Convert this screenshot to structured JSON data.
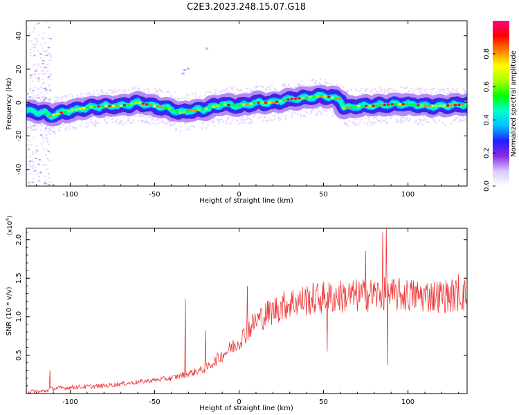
{
  "title": "C2E3.2023.248.15.07.G18",
  "chart_data": [
    {
      "type": "heatmap",
      "xlabel": "Height of straight line (km)",
      "ylabel": "Frequency (Hz)",
      "xlim": [
        -126,
        135
      ],
      "ylim": [
        -50,
        49
      ],
      "xticks": [
        -100,
        -50,
        0,
        50,
        100
      ],
      "yticks": [
        -40,
        -20,
        0,
        20,
        40
      ],
      "ridge_x": [
        -126,
        -115,
        -112,
        -105,
        -100,
        -90,
        -80,
        -70,
        -60,
        -50,
        -40,
        -35,
        -30,
        -20,
        -10,
        0,
        10,
        20,
        30,
        40,
        50,
        55,
        60,
        62,
        65,
        70,
        80,
        90,
        100,
        110,
        120,
        135
      ],
      "ridge_y": [
        -5,
        -6,
        -8,
        -6,
        -5,
        -3,
        -2,
        -2,
        0,
        -2,
        -4,
        -6,
        -5,
        -4,
        -1,
        -2,
        0,
        0,
        2,
        3,
        4,
        3,
        2,
        -3,
        -3,
        -2,
        -2,
        -1,
        -1,
        -2,
        -2,
        -1
      ],
      "colorbar": {
        "label": "Normalized spectral amplitude",
        "ticks": [
          "0.0",
          "0.2",
          "0.4",
          "0.6",
          "0.8"
        ],
        "tick_values": [
          0.0,
          0.2,
          0.4,
          0.6,
          0.8
        ],
        "range": [
          0,
          1
        ],
        "colors": [
          "#ffffff",
          "#d8c8ff",
          "#8a2be2",
          "#2020ff",
          "#00bfff",
          "#00ffd0",
          "#00ff00",
          "#aaff00",
          "#ffff00",
          "#ff8000",
          "#ff0000",
          "#ff0080"
        ]
      },
      "grid": false
    },
    {
      "type": "line",
      "xlabel": "Height of straight line (km)",
      "ylabel": "SNR (10 * v/v)",
      "y_multiplier": "(x10",
      "y_multiplier_exp": "4",
      "y_multiplier_close": ")",
      "xlim": [
        -126,
        135
      ],
      "ylim": [
        0,
        2.15
      ],
      "xticks": [
        -100,
        -50,
        0,
        50,
        100
      ],
      "yticks": [
        "0.5",
        "1.0",
        "1.5",
        "2.0"
      ],
      "ytick_values": [
        0.5,
        1.0,
        1.5,
        2.0
      ],
      "series_color": "#ee3333",
      "trend_x": [
        -126,
        -115,
        -112,
        -100,
        -80,
        -60,
        -40,
        -20,
        -10,
        0,
        10,
        20,
        30,
        40,
        50,
        60,
        70,
        80,
        90,
        100,
        110,
        120,
        135
      ],
      "trend_y": [
        0.02,
        0.03,
        0.06,
        0.08,
        0.1,
        0.15,
        0.2,
        0.32,
        0.5,
        0.68,
        0.95,
        1.08,
        1.18,
        1.22,
        1.25,
        1.26,
        1.27,
        1.29,
        1.28,
        1.28,
        1.27,
        1.27,
        1.28
      ],
      "spikes": [
        {
          "x": -112,
          "y": 0.3
        },
        {
          "x": -32,
          "y": 1.23
        },
        {
          "x": -20,
          "y": 0.82
        },
        {
          "x": 5,
          "y": 1.4
        },
        {
          "x": 75,
          "y": 1.85
        },
        {
          "x": 85,
          "y": 2.1
        },
        {
          "x": 87,
          "y": 2.15
        },
        {
          "x": 88,
          "y": 0.37
        },
        {
          "x": 52,
          "y": 0.55
        },
        {
          "x": 130,
          "y": 1.55
        }
      ]
    }
  ]
}
